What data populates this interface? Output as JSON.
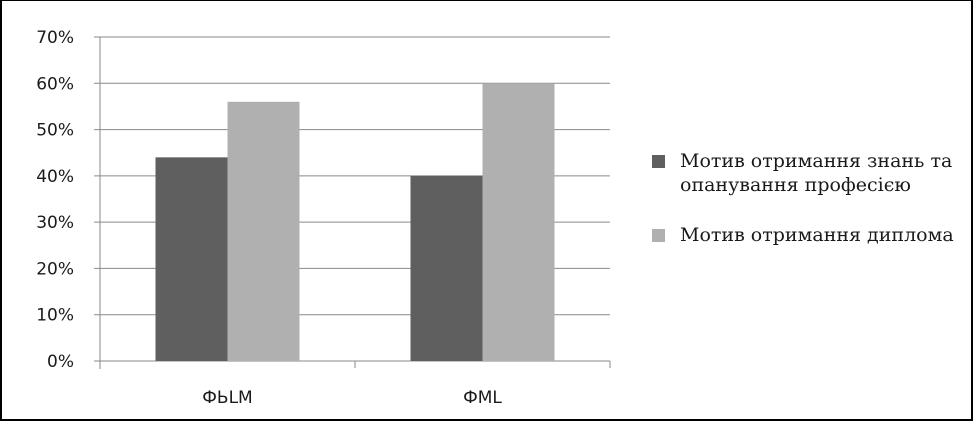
{
  "chart_data": {
    "type": "bar",
    "categories": [
      "ФЬLM",
      "ФML"
    ],
    "series": [
      {
        "name": "Мотив отримання знань та опанування професією",
        "values": [
          44,
          40
        ],
        "color": "#5f5f5f"
      },
      {
        "name": "Мотив отримання диплома",
        "values": [
          56,
          60
        ],
        "color": "#b0b0b0"
      }
    ],
    "ylim": [
      0,
      70
    ],
    "yticks": [
      "0%",
      "10%",
      "20%",
      "30%",
      "40%",
      "50%",
      "60%",
      "70%"
    ],
    "grid": true,
    "legend_position": "right",
    "title": "",
    "xlabel": "",
    "ylabel": ""
  }
}
